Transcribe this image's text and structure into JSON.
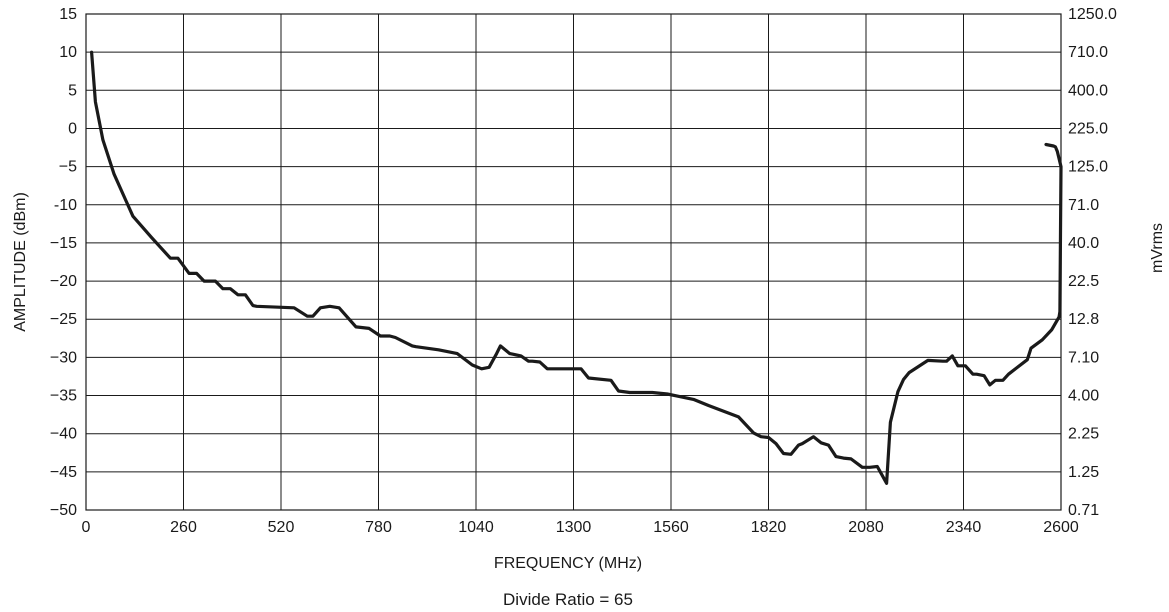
{
  "chart_data": {
    "type": "line",
    "title": "",
    "xlabel": "FREQUENCY (MHz)",
    "ylabel": "AMPLITUDE (dBm)",
    "ylabel_right": "mVrms",
    "caption": "Divide Ratio = 65",
    "xlim": [
      0,
      2600
    ],
    "ylim": [
      -50,
      15
    ],
    "grid": true,
    "x_ticks": [
      "0",
      "260",
      "520",
      "780",
      "1040",
      "1300",
      "1560",
      "1820",
      "2080",
      "2340",
      "2600"
    ],
    "y_ticks": [
      "15",
      "10",
      "5",
      "0",
      "−5",
      "-10",
      "−15",
      "−20",
      "−25",
      "−30",
      "−35",
      "−40",
      "−45",
      "−50"
    ],
    "y_right_ticks": [
      "1250.0",
      "710.0",
      "400.0",
      "225.0",
      "125.0",
      "71.0",
      "40.0",
      "22.5",
      "12.8",
      "7.10",
      "4.00",
      "2.25",
      "1.25",
      "0.71"
    ],
    "series": [
      {
        "x": [
          15,
          25,
          45,
          75,
          125,
          175,
          225,
          245,
          275,
          295,
          315,
          345,
          365,
          385,
          405,
          425,
          445,
          455,
          555,
          590,
          605,
          625,
          650,
          675,
          720,
          755,
          785,
          810,
          825,
          870,
          880,
          940,
          990,
          1030,
          1055,
          1075,
          1095,
          1105,
          1120,
          1130,
          1140,
          1160,
          1180,
          1190,
          1210,
          1230,
          1250,
          1270,
          1320,
          1340,
          1400,
          1420,
          1450,
          1510,
          1550,
          1580,
          1620,
          1660,
          1740,
          1780,
          1800,
          1820,
          1840,
          1860,
          1880,
          1900,
          1910,
          1940,
          1960,
          1980,
          2000,
          2020,
          2040,
          2070,
          2090,
          2110,
          2135,
          2145,
          2165,
          2180,
          2195,
          2245,
          2285,
          2295,
          2310,
          2325,
          2345,
          2365,
          2375,
          2395,
          2410,
          2425,
          2445,
          2460,
          2510,
          2520,
          2550,
          2575,
          2595,
          2597,
          2600,
          2590,
          2585,
          2580,
          2560
        ],
        "y": [
          10,
          3.5,
          -1.5,
          -6,
          -11.5,
          -14.3,
          -17,
          -17,
          -19,
          -19,
          -20,
          -20,
          -21,
          -21,
          -21.8,
          -21.8,
          -23.2,
          -23.3,
          -23.5,
          -24.6,
          -24.6,
          -23.5,
          -23.3,
          -23.5,
          -26,
          -26.2,
          -27.2,
          -27.2,
          -27.4,
          -28.5,
          -28.6,
          -29,
          -29.5,
          -31,
          -31.5,
          -31.3,
          -29.5,
          -28.5,
          -29.1,
          -29.5,
          -29.6,
          -29.8,
          -30.5,
          -30.5,
          -30.6,
          -31.5,
          -31.5,
          -31.5,
          -31.5,
          -32.7,
          -33,
          -34.4,
          -34.6,
          -34.6,
          -34.8,
          -35.1,
          -35.5,
          -36.3,
          -37.8,
          -39.9,
          -40.4,
          -40.5,
          -41.3,
          -42.6,
          -42.7,
          -41.5,
          -41.3,
          -40.4,
          -41.2,
          -41.5,
          -43,
          -43.2,
          -43.3,
          -44.4,
          -44.4,
          -44.3,
          -46.5,
          -38.5,
          -34.5,
          -32.9,
          -32,
          -30.4,
          -30.5,
          -30.5,
          -29.8,
          -31.1,
          -31.1,
          -32.2,
          -32.2,
          -32.4,
          -33.6,
          -33,
          -33,
          -32.2,
          -30.3,
          -28.8,
          -27.7,
          -26.4,
          -24.7,
          -24,
          -5,
          -3,
          -2.4,
          -2.3,
          -2.1
        ]
      }
    ]
  }
}
